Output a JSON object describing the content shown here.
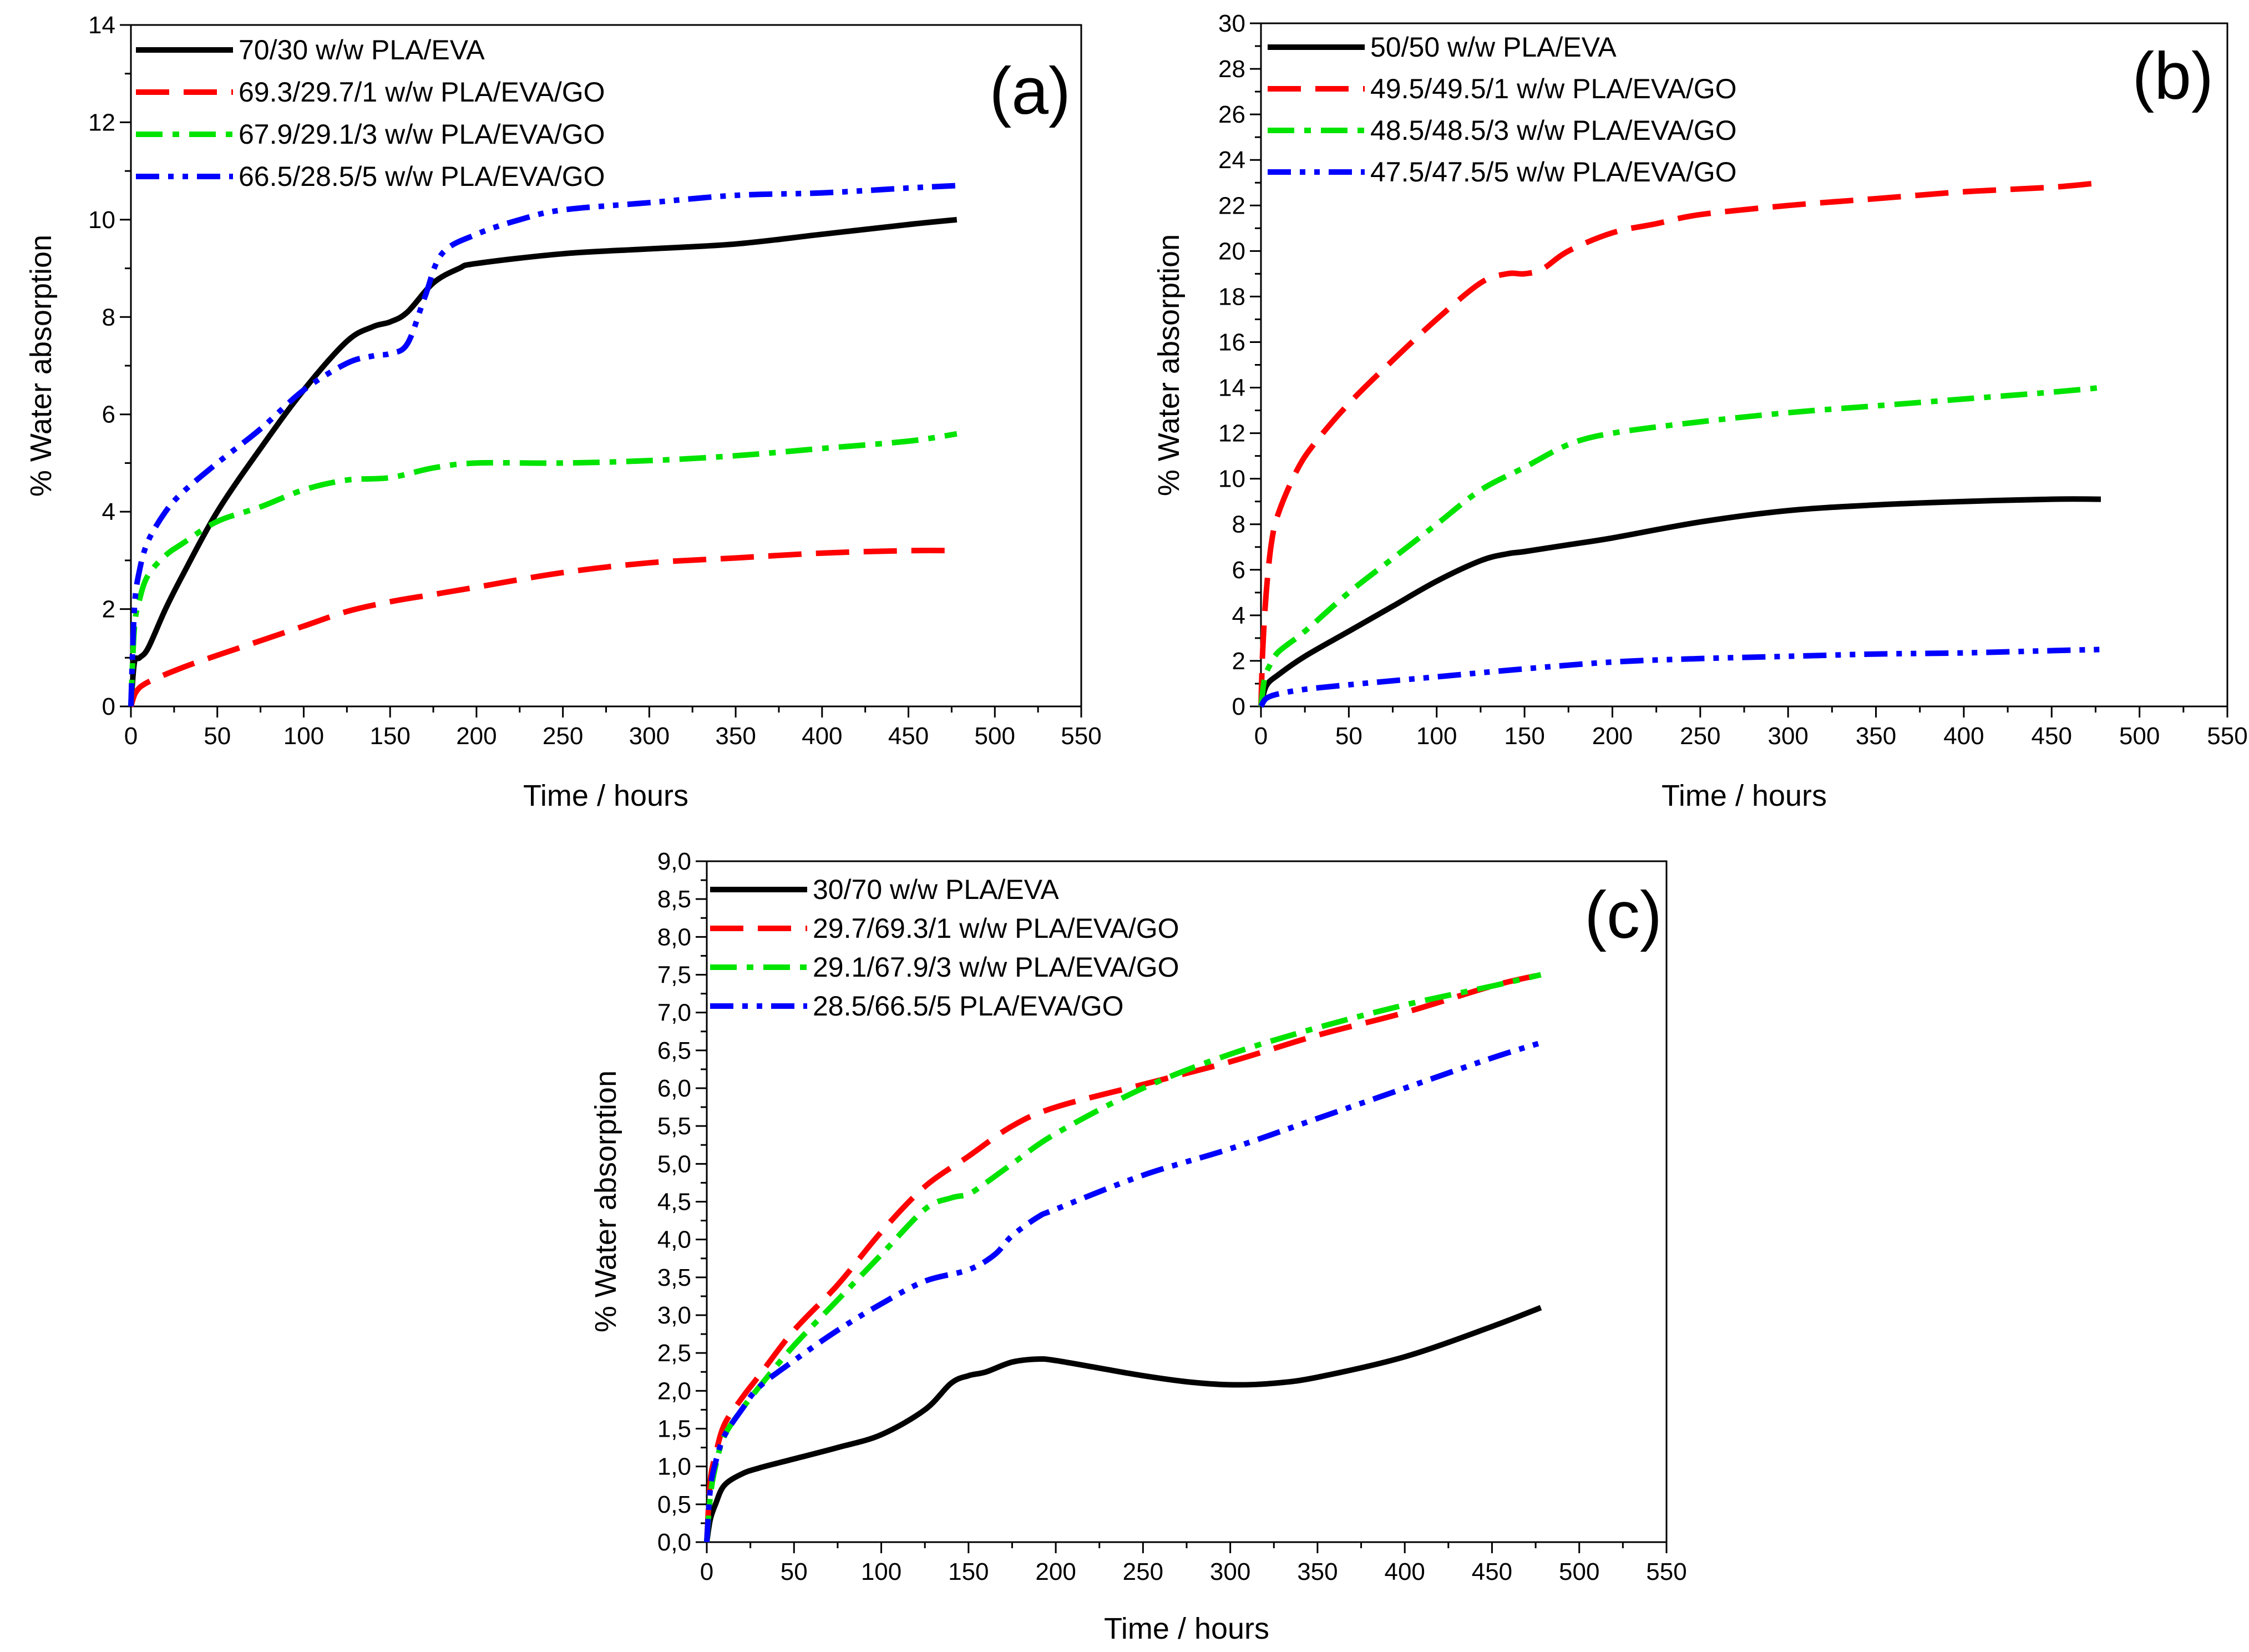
{
  "chart_data": [
    {
      "type": "line",
      "panel_label": "(a)",
      "xlabel": "Time / hours",
      "ylabel": "% Water absorption",
      "xlim": [
        0,
        550
      ],
      "ylim": [
        0,
        14
      ],
      "x_ticks": [
        0,
        50,
        100,
        150,
        200,
        250,
        300,
        350,
        400,
        450,
        500,
        550
      ],
      "x_tick_labels": [
        "0",
        "50",
        "100",
        "150",
        "200",
        "250",
        "300",
        "350",
        "400",
        "450",
        "500",
        "550"
      ],
      "y_ticks": [
        0,
        2,
        4,
        6,
        8,
        10,
        12,
        14
      ],
      "y_tick_labels": [
        "0",
        "2",
        "4",
        "6",
        "8",
        "10",
        "12",
        "14"
      ],
      "legend_position": "top-left",
      "series": [
        {
          "name": "70/30 w/w PLA/EVA",
          "color": "#000000",
          "dash": "solid",
          "x": [
            0,
            2,
            5,
            10,
            20,
            30,
            50,
            75,
            100,
            125,
            140,
            150,
            160,
            175,
            190,
            200,
            250,
            300,
            350,
            400,
            450,
            478
          ],
          "y": [
            0,
            0.9,
            1.0,
            1.2,
            2.0,
            2.7,
            4.0,
            5.3,
            6.5,
            7.5,
            7.8,
            7.9,
            8.1,
            8.7,
            9.0,
            9.1,
            9.3,
            9.4,
            9.5,
            9.7,
            9.9,
            10.0
          ]
        },
        {
          "name": "69.3/29.7/1 w/w PLA/EVA/GO",
          "color": "#ff0000",
          "dash": "long-dash",
          "x": [
            0,
            3,
            10,
            30,
            50,
            75,
            100,
            125,
            150,
            175,
            200,
            250,
            300,
            350,
            400,
            450,
            478
          ],
          "y": [
            0,
            0.3,
            0.5,
            0.8,
            1.05,
            1.35,
            1.65,
            1.95,
            2.15,
            2.3,
            2.45,
            2.75,
            2.95,
            3.05,
            3.15,
            3.2,
            3.2
          ]
        },
        {
          "name": "67.9/29.1/3 w/w PLA/EVA/GO",
          "color": "#00e400",
          "dash": "dash-dot",
          "x": [
            0,
            2,
            5,
            10,
            20,
            30,
            50,
            75,
            100,
            125,
            150,
            175,
            200,
            250,
            300,
            350,
            400,
            450,
            478
          ],
          "y": [
            0,
            1.6,
            2.2,
            2.7,
            3.1,
            3.35,
            3.8,
            4.1,
            4.45,
            4.65,
            4.7,
            4.9,
            5.0,
            5.0,
            5.05,
            5.15,
            5.3,
            5.45,
            5.6
          ]
        },
        {
          "name": "66.5/28.5/5 w/w PLA/EVA/GO",
          "color": "#0000ff",
          "dash": "dash-dot-dot",
          "x": [
            0,
            2,
            5,
            10,
            20,
            30,
            50,
            75,
            100,
            125,
            140,
            150,
            160,
            170,
            180,
            200,
            225,
            250,
            300,
            350,
            400,
            450,
            478
          ],
          "y": [
            0,
            2.0,
            2.8,
            3.4,
            4.0,
            4.4,
            5.0,
            5.7,
            6.5,
            7.05,
            7.2,
            7.25,
            7.45,
            8.4,
            9.3,
            9.7,
            10.0,
            10.2,
            10.35,
            10.5,
            10.55,
            10.65,
            10.7
          ]
        }
      ]
    },
    {
      "type": "line",
      "panel_label": "(b)",
      "xlabel": "Time / hours",
      "ylabel": "% Water absorption",
      "xlim": [
        0,
        550
      ],
      "ylim": [
        0,
        30
      ],
      "x_ticks": [
        0,
        50,
        100,
        150,
        200,
        250,
        300,
        350,
        400,
        450,
        500,
        550
      ],
      "x_tick_labels": [
        "0",
        "50",
        "100",
        "150",
        "200",
        "250",
        "300",
        "350",
        "400",
        "450",
        "500",
        "550"
      ],
      "y_ticks": [
        0,
        2,
        4,
        6,
        8,
        10,
        12,
        14,
        16,
        18,
        20,
        22,
        24,
        26,
        28,
        30
      ],
      "y_tick_labels": [
        "0",
        "2",
        "4",
        "6",
        "8",
        "10",
        "12",
        "14",
        "16",
        "18",
        "20",
        "22",
        "24",
        "26",
        "28",
        "30"
      ],
      "legend_position": "top-left",
      "series": [
        {
          "name": "50/50 w/w PLA/EVA",
          "color": "#000000",
          "dash": "solid",
          "x": [
            0,
            3,
            10,
            25,
            50,
            75,
            100,
            125,
            140,
            150,
            175,
            200,
            250,
            300,
            350,
            400,
            450,
            478
          ],
          "y": [
            0,
            0.9,
            1.4,
            2.2,
            3.3,
            4.4,
            5.5,
            6.4,
            6.7,
            6.8,
            7.1,
            7.4,
            8.1,
            8.6,
            8.85,
            9.0,
            9.1,
            9.1
          ]
        },
        {
          "name": "49.5/49.5/1 w/w PLA/EVA/GO",
          "color": "#ff0000",
          "dash": "long-dash",
          "x": [
            0,
            1,
            3,
            6,
            10,
            20,
            30,
            50,
            75,
            100,
            125,
            140,
            150,
            160,
            175,
            200,
            225,
            250,
            300,
            350,
            400,
            450,
            478
          ],
          "y": [
            0,
            2.5,
            5.0,
            7.2,
            8.5,
            10.3,
            11.5,
            13.3,
            15.2,
            17.0,
            18.6,
            19.0,
            19.0,
            19.2,
            20.0,
            20.8,
            21.2,
            21.6,
            22.0,
            22.3,
            22.6,
            22.8,
            23.0
          ]
        },
        {
          "name": "48.5/48.5/3 w/w PLA/EVA/GO",
          "color": "#00e400",
          "dash": "dash-dot",
          "x": [
            0,
            2,
            5,
            10,
            25,
            50,
            75,
            100,
            125,
            150,
            175,
            200,
            250,
            300,
            350,
            400,
            450,
            478
          ],
          "y": [
            0,
            1.2,
            1.8,
            2.4,
            3.3,
            5.0,
            6.5,
            8.0,
            9.5,
            10.5,
            11.5,
            12.0,
            12.5,
            12.9,
            13.2,
            13.5,
            13.8,
            14.0
          ]
        },
        {
          "name": "47.5/47.5/5 w/w PLA/EVA/GO",
          "color": "#0000ff",
          "dash": "dash-dot-dot",
          "x": [
            0,
            3,
            10,
            25,
            50,
            100,
            150,
            200,
            250,
            300,
            350,
            400,
            450,
            478
          ],
          "y": [
            0,
            0.35,
            0.55,
            0.75,
            0.95,
            1.3,
            1.65,
            1.95,
            2.1,
            2.2,
            2.3,
            2.35,
            2.45,
            2.5
          ]
        }
      ]
    },
    {
      "type": "line",
      "panel_label": "(c)",
      "xlabel": "Time / hours",
      "ylabel": "% Water absorption",
      "xlim": [
        0,
        550
      ],
      "ylim": [
        0,
        9
      ],
      "x_ticks": [
        0,
        50,
        100,
        150,
        200,
        250,
        300,
        350,
        400,
        450,
        500,
        550
      ],
      "x_tick_labels": [
        "0",
        "50",
        "100",
        "150",
        "200",
        "250",
        "300",
        "350",
        "400",
        "450",
        "500",
        "550"
      ],
      "y_ticks": [
        0,
        0.5,
        1,
        1.5,
        2,
        2.5,
        3,
        3.5,
        4,
        4.5,
        5,
        5.5,
        6,
        6.5,
        7,
        7.5,
        8,
        8.5,
        9
      ],
      "y_tick_labels": [
        "0,0",
        "0,5",
        "1,0",
        "1,5",
        "2,0",
        "2,5",
        "3,0",
        "3,5",
        "4,0",
        "4,5",
        "5,0",
        "5,5",
        "6,0",
        "6,5",
        "7,0",
        "7,5",
        "8,0",
        "8,5",
        "9,0"
      ],
      "legend_position": "top-left",
      "series": [
        {
          "name": "30/70 w/w PLA/EVA",
          "color": "#000000",
          "dash": "solid",
          "x": [
            0,
            2,
            5,
            10,
            20,
            30,
            50,
            75,
            100,
            125,
            140,
            150,
            160,
            175,
            190,
            200,
            225,
            250,
            275,
            300,
            325,
            350,
            400,
            450,
            478
          ],
          "y": [
            0,
            0.3,
            0.5,
            0.75,
            0.9,
            0.98,
            1.1,
            1.25,
            1.42,
            1.75,
            2.1,
            2.2,
            2.25,
            2.38,
            2.42,
            2.4,
            2.3,
            2.2,
            2.12,
            2.08,
            2.1,
            2.18,
            2.45,
            2.85,
            3.1
          ]
        },
        {
          "name": "29.7/69.3/1 w/w PLA/EVA/GO",
          "color": "#ff0000",
          "dash": "long-dash",
          "x": [
            0,
            2,
            5,
            10,
            20,
            30,
            50,
            75,
            100,
            125,
            150,
            175,
            200,
            250,
            300,
            350,
            400,
            450,
            478
          ],
          "y": [
            0,
            0.8,
            1.15,
            1.55,
            1.9,
            2.2,
            2.8,
            3.4,
            4.1,
            4.7,
            5.1,
            5.5,
            5.75,
            6.05,
            6.35,
            6.7,
            7.0,
            7.35,
            7.5
          ]
        },
        {
          "name": "29.1/67.9/3 w/w PLA/EVA/GO",
          "color": "#00e400",
          "dash": "dash-dot",
          "x": [
            0,
            2,
            5,
            10,
            20,
            30,
            50,
            75,
            100,
            125,
            140,
            150,
            160,
            175,
            200,
            250,
            300,
            350,
            400,
            450,
            478
          ],
          "y": [
            0,
            0.6,
            1.0,
            1.4,
            1.75,
            2.05,
            2.6,
            3.2,
            3.8,
            4.4,
            4.55,
            4.6,
            4.75,
            5.0,
            5.4,
            6.0,
            6.45,
            6.8,
            7.1,
            7.35,
            7.5
          ]
        },
        {
          "name": "28.5/66.5/5 PLA/EVA/GO",
          "color": "#0000ff",
          "dash": "dash-dot-dot",
          "x": [
            0,
            2,
            5,
            10,
            20,
            30,
            50,
            75,
            100,
            125,
            150,
            165,
            175,
            190,
            200,
            250,
            300,
            350,
            400,
            450,
            478
          ],
          "y": [
            0,
            0.7,
            1.05,
            1.4,
            1.75,
            2.05,
            2.4,
            2.8,
            3.15,
            3.45,
            3.6,
            3.8,
            4.05,
            4.3,
            4.4,
            4.85,
            5.2,
            5.6,
            6.0,
            6.4,
            6.6
          ]
        }
      ]
    }
  ]
}
